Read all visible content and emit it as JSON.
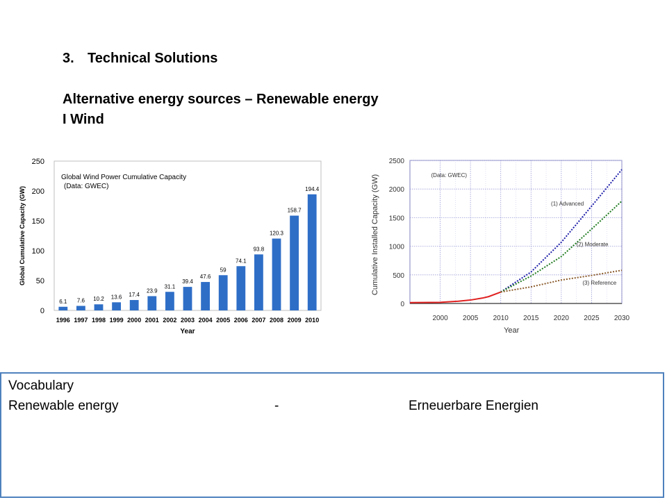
{
  "heading": {
    "number": "3.",
    "title": "Technical Solutions",
    "subtitle": "Alternative energy sources – Renewable energy",
    "topic": "I Wind"
  },
  "chart_data": [
    {
      "type": "bar",
      "title": "Global Wind Power Cumulative Capacity",
      "subtitle": "(Data: GWEC)",
      "xlabel": "Year",
      "ylabel": "Global Cumulative Capacity (GW)",
      "ylim": [
        0,
        250
      ],
      "yticks": [
        0,
        50,
        100,
        150,
        200,
        250
      ],
      "categories": [
        "1996",
        "1997",
        "1998",
        "1999",
        "2000",
        "2001",
        "2002",
        "2003",
        "2004",
        "2005",
        "2006",
        "2007",
        "2008",
        "2009",
        "2010"
      ],
      "values": [
        6.1,
        7.6,
        10.2,
        13.6,
        17.4,
        23.9,
        31.1,
        39.4,
        47.6,
        59,
        74.1,
        93.8,
        120.3,
        158.7,
        194.4
      ],
      "data_labels": [
        "6.1",
        "7.6",
        "10.2",
        "13.6",
        "17.4",
        "23.9",
        "31.1",
        "39.4",
        "47.6",
        "59",
        "74.1",
        "93.8",
        "120.3",
        "158.7",
        "194.4"
      ],
      "bar_color": "#2e6ec7",
      "grid": false
    },
    {
      "type": "line",
      "annotation": "(Data: GWEC)",
      "xlabel": "Year",
      "ylabel": "Cumulative Installed Capacity (GW)",
      "xlim": [
        1995,
        2030
      ],
      "ylim": [
        0,
        2500
      ],
      "xticks": [
        2000,
        2005,
        2010,
        2015,
        2020,
        2025,
        2030
      ],
      "yticks": [
        0,
        500,
        1000,
        1500,
        2000,
        2500
      ],
      "grid": true,
      "series": [
        {
          "color": "#e02020",
          "style": "solid",
          "x": [
            1995,
            2000,
            2003,
            2005,
            2007,
            2008,
            2010
          ],
          "y": [
            15,
            20,
            40,
            60,
            95,
            120,
            200
          ]
        },
        {
          "name": "(1) Advanced",
          "color": "#1a1aa8",
          "style": "dotted",
          "x": [
            2010,
            2015,
            2020,
            2025,
            2030
          ],
          "y": [
            200,
            550,
            1070,
            1700,
            2340
          ]
        },
        {
          "name": "(2) Moderate",
          "color": "#1e7a1e",
          "style": "dotted",
          "x": [
            2010,
            2015,
            2020,
            2025,
            2030
          ],
          "y": [
            200,
            480,
            820,
            1300,
            1790
          ]
        },
        {
          "name": "(3) Reference",
          "color": "#8a5a2a",
          "style": "dotted",
          "x": [
            2010,
            2015,
            2020,
            2025,
            2030
          ],
          "y": [
            200,
            290,
            410,
            490,
            580
          ]
        }
      ]
    }
  ],
  "vocabulary": {
    "title": "Vocabulary",
    "term": "Renewable energy",
    "separator": "-",
    "translation": "Erneuerbare Energien",
    "border_color": "#4f81bd"
  }
}
